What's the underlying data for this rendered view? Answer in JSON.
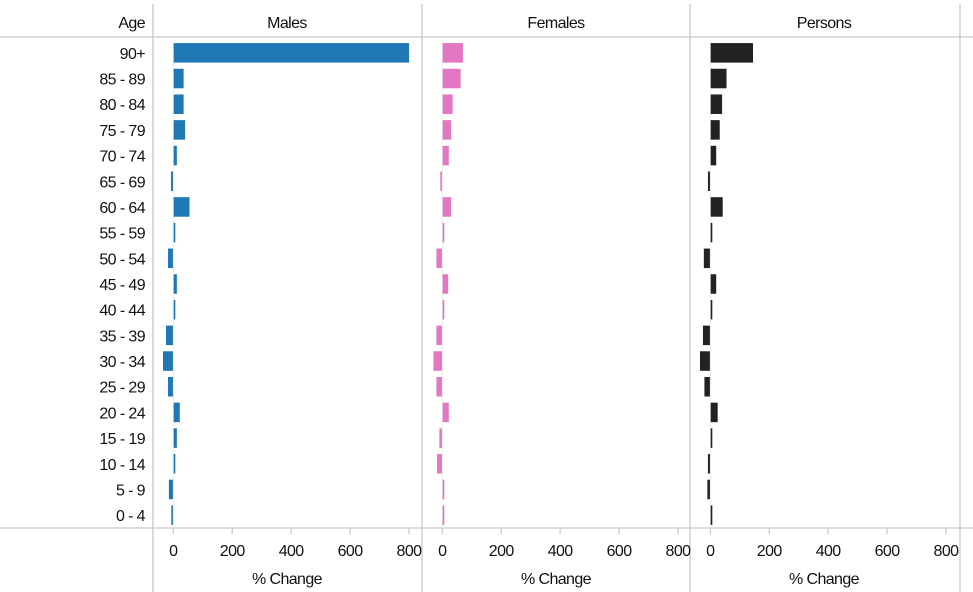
{
  "chart_data": {
    "type": "bar",
    "orientation": "horizontal",
    "category_header": "Age",
    "categories": [
      "90+",
      "85 - 89",
      "80 - 84",
      "75 - 79",
      "70 - 74",
      "65 - 69",
      "60 - 64",
      "55 - 59",
      "50 - 54",
      "45 - 49",
      "40 - 44",
      "35 - 39",
      "30 - 34",
      "25 - 29",
      "20 - 24",
      "15 - 19",
      "10 - 14",
      "5 - 9",
      "0 - 4"
    ],
    "panels": [
      {
        "name": "Males",
        "color": "#1f77b4",
        "values": [
          800,
          35,
          35,
          40,
          12,
          -8,
          55,
          3,
          -18,
          12,
          3,
          -25,
          -35,
          -18,
          22,
          12,
          3,
          -15,
          -5
        ]
      },
      {
        "name": "Females",
        "color": "#e377c2",
        "values": [
          70,
          62,
          35,
          30,
          22,
          -5,
          30,
          3,
          -20,
          20,
          3,
          -20,
          -30,
          -20,
          22,
          -10,
          -18,
          3,
          3
        ]
      },
      {
        "name": "Persons",
        "color": "#222222",
        "values": [
          145,
          55,
          40,
          32,
          20,
          -8,
          42,
          3,
          -22,
          20,
          3,
          -25,
          -35,
          -20,
          25,
          3,
          -8,
          -10,
          3
        ]
      }
    ],
    "xlim": [
      -35,
      800
    ],
    "xticks": [
      0,
      200,
      400,
      600,
      800
    ],
    "xlabel": "% Change",
    "grid": false
  }
}
